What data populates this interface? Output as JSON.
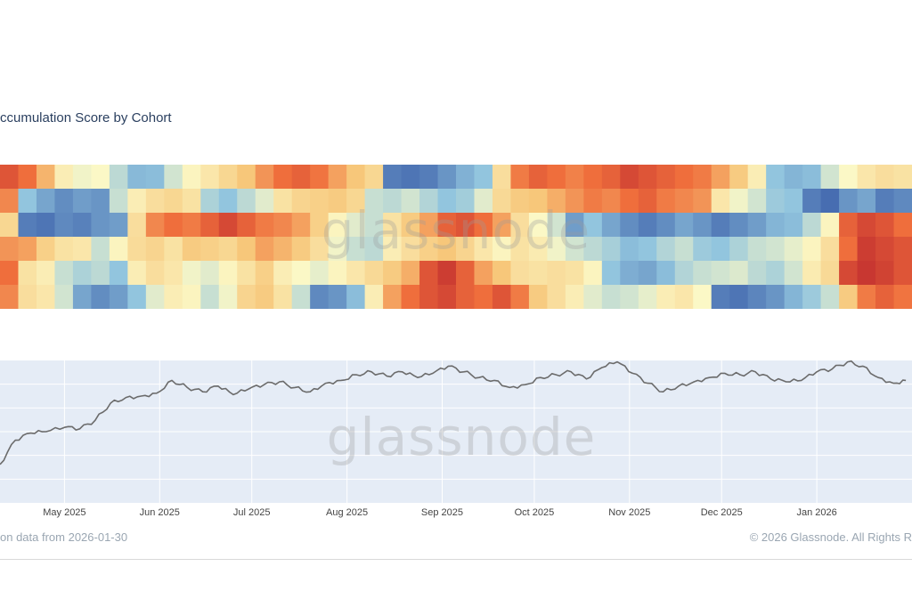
{
  "title": "ccumulation Score by Cohort",
  "footer": {
    "left": "on data from 2026-01-30",
    "right": "© 2026 Glassnode. All Rights R"
  },
  "watermark": "glassnode",
  "colors": {
    "accumulation_high": "#b2182b",
    "accumulation_mid": "#f7c77a",
    "neutral": "#fbf8c6",
    "distribution_mid": "#92c5de",
    "distribution_high": "#2c4da0",
    "line": "#6b6b6b",
    "plot_bg": "#e5ecf6"
  },
  "chart_data": [
    {
      "type": "heatmap",
      "title": "ccumulation Score by Cohort",
      "color_scale": "0 = strong distribution (blue), 1 = strong accumulation (red)",
      "columns": 50,
      "rows": [
        [
          0.9,
          0.86,
          0.75,
          0.55,
          0.48,
          0.5,
          0.38,
          0.27,
          0.28,
          0.42,
          0.52,
          0.58,
          0.65,
          0.72,
          0.8,
          0.86,
          0.88,
          0.85,
          0.78,
          0.72,
          0.65,
          0.12,
          0.1,
          0.12,
          0.18,
          0.25,
          0.3,
          0.62,
          0.84,
          0.88,
          0.86,
          0.83,
          0.86,
          0.88,
          0.92,
          0.9,
          0.88,
          0.86,
          0.84,
          0.78,
          0.7,
          0.55,
          0.3,
          0.26,
          0.28,
          0.42,
          0.5,
          0.58,
          0.62,
          0.6
        ],
        [
          0.82,
          0.3,
          0.22,
          0.16,
          0.2,
          0.18,
          0.4,
          0.55,
          0.62,
          0.65,
          0.6,
          0.35,
          0.3,
          0.38,
          0.45,
          0.6,
          0.66,
          0.68,
          0.7,
          0.65,
          0.4,
          0.38,
          0.42,
          0.36,
          0.3,
          0.33,
          0.45,
          0.64,
          0.7,
          0.72,
          0.76,
          0.8,
          0.84,
          0.82,
          0.86,
          0.88,
          0.84,
          0.82,
          0.8,
          0.58,
          0.48,
          0.42,
          0.32,
          0.3,
          0.12,
          0.08,
          0.18,
          0.22,
          0.12,
          0.15
        ],
        [
          0.65,
          0.12,
          0.1,
          0.15,
          0.13,
          0.18,
          0.2,
          0.62,
          0.82,
          0.86,
          0.84,
          0.88,
          0.92,
          0.88,
          0.84,
          0.82,
          0.78,
          0.68,
          0.52,
          0.45,
          0.4,
          0.6,
          0.7,
          0.78,
          0.88,
          0.9,
          0.86,
          0.78,
          0.62,
          0.5,
          0.42,
          0.2,
          0.3,
          0.22,
          0.16,
          0.12,
          0.16,
          0.22,
          0.18,
          0.12,
          0.16,
          0.2,
          0.26,
          0.28,
          0.38,
          0.52,
          0.88,
          0.92,
          0.9,
          0.86
        ],
        [
          0.8,
          0.78,
          0.68,
          0.6,
          0.58,
          0.4,
          0.52,
          0.63,
          0.66,
          0.6,
          0.7,
          0.68,
          0.65,
          0.72,
          0.78,
          0.75,
          0.7,
          0.62,
          0.48,
          0.4,
          0.38,
          0.55,
          0.62,
          0.68,
          0.72,
          0.66,
          0.58,
          0.52,
          0.6,
          0.56,
          0.48,
          0.42,
          0.38,
          0.34,
          0.28,
          0.3,
          0.36,
          0.4,
          0.32,
          0.3,
          0.35,
          0.4,
          0.42,
          0.46,
          0.52,
          0.62,
          0.86,
          0.94,
          0.92,
          0.9
        ],
        [
          0.86,
          0.6,
          0.55,
          0.4,
          0.35,
          0.38,
          0.3,
          0.55,
          0.62,
          0.58,
          0.48,
          0.45,
          0.52,
          0.6,
          0.68,
          0.55,
          0.5,
          0.46,
          0.52,
          0.58,
          0.64,
          0.7,
          0.76,
          0.9,
          0.94,
          0.88,
          0.78,
          0.72,
          0.62,
          0.6,
          0.62,
          0.6,
          0.52,
          0.3,
          0.24,
          0.22,
          0.28,
          0.36,
          0.4,
          0.42,
          0.44,
          0.38,
          0.35,
          0.42,
          0.56,
          0.64,
          0.92,
          0.95,
          0.93,
          0.9
        ],
        [
          0.82,
          0.62,
          0.58,
          0.42,
          0.22,
          0.16,
          0.2,
          0.3,
          0.45,
          0.55,
          0.52,
          0.4,
          0.48,
          0.66,
          0.7,
          0.6,
          0.4,
          0.15,
          0.18,
          0.28,
          0.55,
          0.78,
          0.86,
          0.9,
          0.92,
          0.88,
          0.86,
          0.9,
          0.84,
          0.7,
          0.62,
          0.55,
          0.45,
          0.4,
          0.42,
          0.46,
          0.55,
          0.58,
          0.5,
          0.12,
          0.1,
          0.14,
          0.18,
          0.26,
          0.32,
          0.4,
          0.7,
          0.84,
          0.88,
          0.85
        ]
      ]
    },
    {
      "type": "line",
      "x_ticks": [
        "May 2025",
        "Jun 2025",
        "Jul 2025",
        "Aug 2025",
        "Sep 2025",
        "Oct 2025",
        "Nov 2025",
        "Dec 2025",
        "Jan 2026"
      ],
      "x_range": [
        "2025-04-10",
        "2026-02-01"
      ],
      "y_range": [
        0,
        100
      ],
      "y_note": "relative level; no y tick labels visible",
      "grid": true,
      "series": [
        {
          "x": [
            "2025-04-10",
            "2025-04-15",
            "2025-04-20",
            "2025-04-25",
            "2025-05-01",
            "2025-05-06",
            "2025-05-11",
            "2025-05-16",
            "2025-05-21",
            "2025-05-26",
            "2025-05-31",
            "2025-06-05",
            "2025-06-10",
            "2025-06-15",
            "2025-06-20",
            "2025-06-25",
            "2025-06-30",
            "2025-07-05",
            "2025-07-10",
            "2025-07-15",
            "2025-07-20",
            "2025-07-25",
            "2025-07-30",
            "2025-08-04",
            "2025-08-09",
            "2025-08-14",
            "2025-08-19",
            "2025-08-24",
            "2025-08-29",
            "2025-09-03",
            "2025-09-08",
            "2025-09-13",
            "2025-09-18",
            "2025-09-23",
            "2025-09-28",
            "2025-10-03",
            "2025-10-08",
            "2025-10-13",
            "2025-10-18",
            "2025-10-23",
            "2025-10-28",
            "2025-11-02",
            "2025-11-07",
            "2025-11-12",
            "2025-11-17",
            "2025-11-22",
            "2025-11-27",
            "2025-12-02",
            "2025-12-07",
            "2025-12-12",
            "2025-12-17",
            "2025-12-22",
            "2025-12-27",
            "2026-01-01",
            "2026-01-06",
            "2026-01-11",
            "2026-01-16",
            "2026-01-21",
            "2026-01-26",
            "2026-01-30"
          ],
          "y": [
            27,
            44,
            49,
            50,
            53,
            52,
            58,
            70,
            74,
            75,
            77,
            86,
            81,
            78,
            82,
            76,
            80,
            83,
            85,
            81,
            78,
            84,
            86,
            90,
            92,
            89,
            92,
            88,
            91,
            96,
            92,
            88,
            86,
            81,
            83,
            88,
            90,
            92,
            87,
            95,
            99,
            91,
            84,
            78,
            82,
            85,
            88,
            91,
            90,
            92,
            87,
            85,
            86,
            92,
            94,
            99,
            96,
            88,
            84,
            86
          ]
        }
      ]
    }
  ]
}
